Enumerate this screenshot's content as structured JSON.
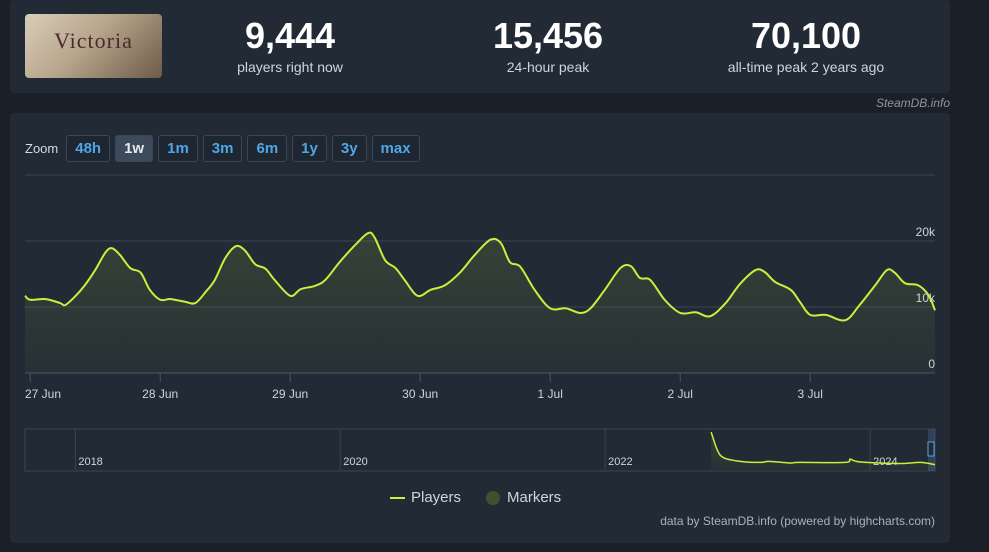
{
  "header": {
    "logo_text": "Victoria",
    "stats": [
      {
        "value": "9,444",
        "label": "players right now"
      },
      {
        "value": "15,456",
        "label": "24-hour peak"
      },
      {
        "value": "70,100",
        "label": "all-time peak 2 years ago"
      }
    ],
    "source": "SteamDB.info"
  },
  "zoom": {
    "label": "Zoom",
    "buttons": [
      "48h",
      "1w",
      "1m",
      "3m",
      "6m",
      "1y",
      "3y",
      "max"
    ],
    "active": "1w"
  },
  "chart_data": [
    {
      "type": "line",
      "x": [
        -0.04,
        0,
        0.12,
        0.23,
        0.27,
        0.35,
        0.42,
        0.5,
        0.58,
        0.63,
        0.69,
        0.77,
        0.85,
        0.92,
        1,
        1.08,
        1.19,
        1.27,
        1.35,
        1.42,
        1.5,
        1.58,
        1.65,
        1.73,
        1.81,
        1.88,
        2,
        2.08,
        2.19,
        2.27,
        2.38,
        2.5,
        2.6,
        2.65,
        2.73,
        2.81,
        2.88,
        2.98,
        3.08,
        3.19,
        3.31,
        3.42,
        3.54,
        3.62,
        3.69,
        3.77,
        3.88,
        4,
        4.12,
        4.23,
        4.31,
        4.42,
        4.54,
        4.62,
        4.69,
        4.77,
        4.88,
        5,
        5.12,
        5.23,
        5.35,
        5.46,
        5.58,
        5.65,
        5.73,
        5.85,
        5.92,
        6,
        6.12,
        6.27,
        6.38,
        6.5,
        6.59,
        6.65,
        6.73,
        6.83,
        6.91,
        6.96
      ],
      "series": [
        {
          "name": "Players",
          "color": "#c8f03c",
          "values": [
            11700,
            11100,
            11200,
            10600,
            10300,
            11700,
            13300,
            15600,
            18300,
            18900,
            17900,
            15900,
            15200,
            12600,
            11100,
            11200,
            10800,
            10600,
            12300,
            14100,
            17400,
            19200,
            18600,
            16500,
            15800,
            14100,
            11700,
            12700,
            13200,
            14100,
            16800,
            19400,
            21200,
            20500,
            17100,
            15900,
            14100,
            11700,
            12600,
            13300,
            15300,
            17900,
            20200,
            19700,
            16800,
            16100,
            12600,
            9800,
            9800,
            9100,
            9800,
            12600,
            15900,
            16200,
            14400,
            14100,
            11100,
            9100,
            9200,
            8600,
            10600,
            13500,
            15600,
            15300,
            13800,
            12600,
            10800,
            8800,
            8800,
            8000,
            10300,
            13300,
            15600,
            15200,
            13600,
            13300,
            11800,
            9500
          ]
        }
      ],
      "markers": {
        "name": "Markers",
        "color": "#3f5230"
      },
      "xlim": [
        -0.04,
        6.96
      ],
      "xticks": [
        {
          "value": 0,
          "label": "27 Jun"
        },
        {
          "value": 1,
          "label": "28 Jun"
        },
        {
          "value": 2,
          "label": "29 Jun"
        },
        {
          "value": 3,
          "label": "30 Jun"
        },
        {
          "value": 4,
          "label": "1 Jul"
        },
        {
          "value": 5,
          "label": "2 Jul"
        },
        {
          "value": 6,
          "label": "3 Jul"
        }
      ],
      "ylim": [
        0,
        30000
      ],
      "yticks": [
        0,
        {
          "value": 10000,
          "label": "10k"
        },
        {
          "value": 20000,
          "label": "20k"
        }
      ],
      "grid": true
    },
    {
      "type": "area",
      "x": [
        2022.8,
        2022.85,
        2022.9,
        2023.02,
        2023.17,
        2023.24,
        2023.39,
        2023.47,
        2023.81,
        2023.85,
        2023.92,
        2024.22,
        2024.38,
        2024.49
      ],
      "series": [
        {
          "name": "Players",
          "color": "#c8f03c",
          "values": [
            70000,
            35000,
            22000,
            16000,
            14000,
            16000,
            13000,
            14000,
            14000,
            20000,
            15000,
            12000,
            14000,
            10000
          ]
        }
      ],
      "xlim": [
        2017.62,
        2024.49
      ],
      "xticks": [
        2018,
        2020,
        2022,
        2024
      ],
      "ylim": [
        0,
        72000
      ],
      "grid": true
    }
  ],
  "credit": "data by SteamDB.info (powered by highcharts.com)"
}
